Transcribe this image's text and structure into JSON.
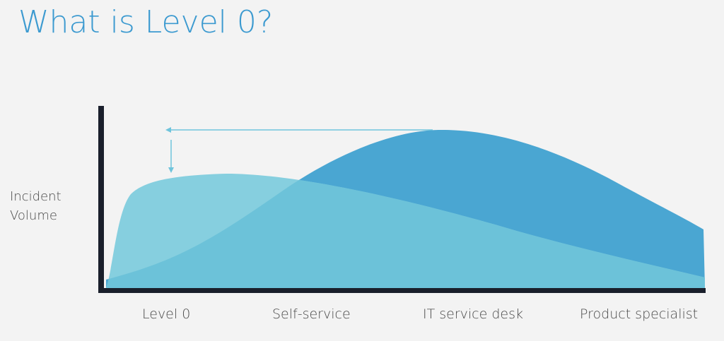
{
  "slide": {
    "title": "What is Level 0?"
  },
  "chart": {
    "ylabel_line1": "Incident",
    "ylabel_line2": "Volume",
    "categories": [
      "Level 0",
      "Self-service",
      "IT service desk",
      "Product specialist"
    ]
  },
  "colors": {
    "title": "#3c9ad0",
    "axis": "#1a1f2b",
    "level0_curve": "#86cfdf",
    "service_desk_curve": "#4aa6d2",
    "overlap": "#6cc2d9",
    "arrow": "#6fc4dc",
    "background": "#f3f3f3"
  }
}
